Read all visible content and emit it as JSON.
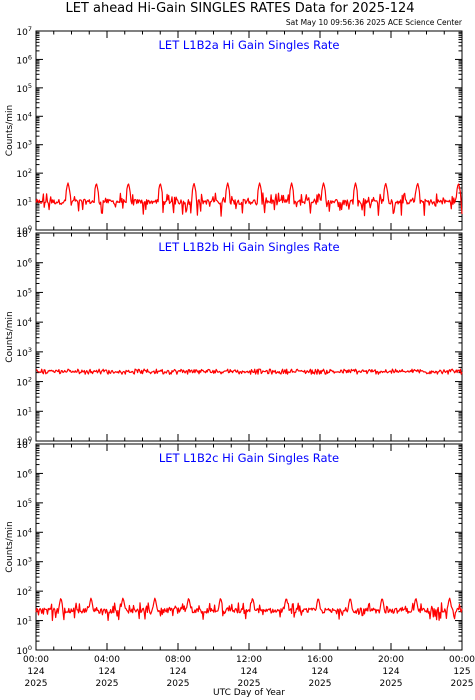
{
  "figure": {
    "title": "LET ahead Hi-Gain SINGLES RATES Data for 2025-124",
    "timestamp": "Sat May 10 09:56:36 2025 ACE Science Center",
    "ylabel": "Counts/min",
    "xlabel": "UTC Day of Year"
  },
  "colors": {
    "background": "#ffffff",
    "axes": "#000000",
    "panel_title": "#0000ff",
    "series": "#ff0000"
  },
  "chart_data": [
    {
      "type": "line",
      "title": "LET L1B2a Hi Gain Singles Rate",
      "ylabel": "Counts/min",
      "yscale": "log",
      "ylim": [
        1,
        10000000
      ],
      "ytick_labels": [
        "10^0",
        "10^1",
        "10^2",
        "10^3",
        "10^4",
        "10^5",
        "10^6",
        "10^7"
      ],
      "xlim": [
        0,
        24
      ],
      "series": [
        {
          "color": "#ff0000",
          "baseline": 10,
          "noise_low": 3,
          "noise_high": 20,
          "spike_peak": 45,
          "spike_hours": [
            1.8,
            3.4,
            5.2,
            7.0,
            8.9,
            10.8,
            12.6,
            14.4,
            16.2,
            18.0,
            19.7,
            21.5,
            23.8
          ]
        }
      ]
    },
    {
      "type": "line",
      "title": "LET L1B2b Hi Gain Singles Rate",
      "ylabel": "Counts/min",
      "yscale": "log",
      "ylim": [
        1,
        10000000
      ],
      "ytick_labels": [
        "10^0",
        "10^1",
        "10^2",
        "10^3",
        "10^4",
        "10^5",
        "10^6",
        "10^7"
      ],
      "xlim": [
        0,
        24
      ],
      "series": [
        {
          "color": "#ff0000",
          "baseline": 220,
          "noise_low": 200,
          "noise_high": 240,
          "spike_peak": 260,
          "spike_hours": [
            1.8,
            3.4,
            5.2,
            7.0,
            8.9,
            10.8,
            12.6,
            14.4,
            16.2,
            18.0,
            19.7,
            21.5,
            23.8
          ]
        }
      ]
    },
    {
      "type": "line",
      "title": "LET L1B2c Hi Gain Singles Rate",
      "ylabel": "Counts/min",
      "yscale": "log",
      "ylim": [
        1,
        10000000
      ],
      "ytick_labels": [
        "10^0",
        "10^1",
        "10^2",
        "10^3",
        "10^4",
        "10^5",
        "10^6",
        "10^7"
      ],
      "xlim": [
        0,
        24
      ],
      "series": [
        {
          "color": "#ff0000",
          "baseline": 22,
          "noise_low": 10,
          "noise_high": 40,
          "spike_peak": 60,
          "spike_hours": [
            1.4,
            3.1,
            4.9,
            6.7,
            8.6,
            10.4,
            12.2,
            14.1,
            15.9,
            17.7,
            19.5,
            21.4,
            23.3
          ]
        }
      ]
    }
  ],
  "x_axis": {
    "ticks": [
      {
        "hour": 0,
        "time": "00:00",
        "doy": "124",
        "year": "2025"
      },
      {
        "hour": 4,
        "time": "04:00",
        "doy": "124",
        "year": "2025"
      },
      {
        "hour": 8,
        "time": "08:00",
        "doy": "124",
        "year": "2025"
      },
      {
        "hour": 12,
        "time": "12:00",
        "doy": "124",
        "year": "2025"
      },
      {
        "hour": 16,
        "time": "16:00",
        "doy": "124",
        "year": "2025"
      },
      {
        "hour": 20,
        "time": "20:00",
        "doy": "124",
        "year": "2025"
      },
      {
        "hour": 24,
        "time": "00:00",
        "doy": "125",
        "year": "2025"
      }
    ],
    "minor_tick_step_hours": 1
  }
}
